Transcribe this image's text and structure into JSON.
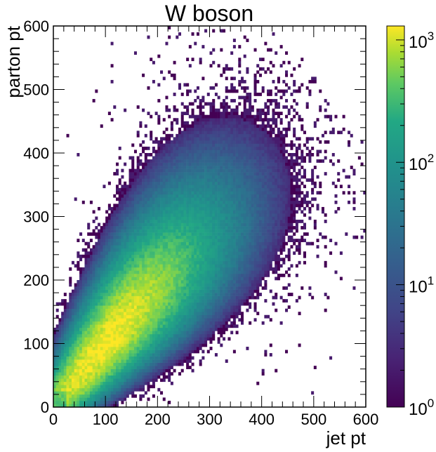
{
  "chart_data": {
    "type": "heatmap",
    "title": "W boson",
    "xlabel": "jet pt",
    "ylabel": "parton pt",
    "xlim": [
      0,
      600
    ],
    "ylim": [
      0,
      600
    ],
    "bin_width": 5,
    "x_ticks": [
      "0",
      "100",
      "200",
      "300",
      "400",
      "500",
      "600"
    ],
    "y_ticks": [
      "0",
      "100",
      "200",
      "300",
      "400",
      "500",
      "600"
    ],
    "colorbar": {
      "scale": "log",
      "range": [
        1,
        1300
      ],
      "colormap": "viridis",
      "ticks": [
        {
          "base": "10",
          "exp": "0",
          "value": 1
        },
        {
          "base": "10",
          "exp": "1",
          "value": 10
        },
        {
          "base": "10",
          "exp": "2",
          "value": 100
        },
        {
          "base": "10",
          "exp": "3",
          "value": 1000
        }
      ]
    },
    "distribution": {
      "correlation": "strong positive, along diagonal",
      "peak_region": {
        "x": [
          40,
          160
        ],
        "y": [
          40,
          160
        ]
      },
      "sparse_tail_to": {
        "x": 600,
        "y": 600
      }
    },
    "grid": false,
    "legend": "none"
  }
}
